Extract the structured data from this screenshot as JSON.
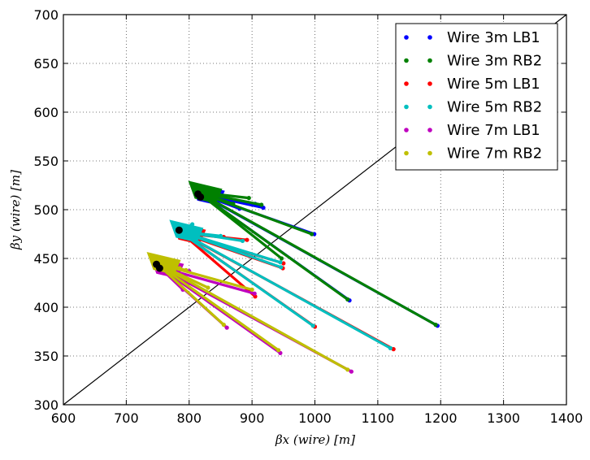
{
  "chart_data": {
    "type": "scatter",
    "xlabel": "βx (wire) [m]",
    "ylabel": "βy (wire) [m]",
    "xlim": [
      600,
      1400
    ],
    "ylim": [
      300,
      700
    ],
    "xticks": [
      600,
      700,
      800,
      900,
      1000,
      1100,
      1200,
      1300,
      1400
    ],
    "yticks": [
      300,
      350,
      400,
      450,
      500,
      550,
      600,
      650,
      700
    ],
    "grid": true,
    "legend_position": "top-right",
    "reference_line": {
      "from": [
        600,
        300
      ],
      "to": [
        1400,
        700
      ]
    },
    "series": [
      {
        "name": "Wire 3m LB1",
        "color": "#0000ff",
        "origin": [
          818,
          516
        ],
        "branches": [
          [
            845,
            506
          ],
          [
            880,
            501
          ],
          [
            905,
            506
          ],
          [
            918,
            502
          ],
          [
            999,
            475
          ],
          [
            1055,
            407
          ],
          [
            1195,
            381
          ]
        ]
      },
      {
        "name": "Wire 3m RB2",
        "color": "#008000",
        "origin": [
          814,
          518
        ],
        "branches": [
          [
            840,
            508
          ],
          [
            870,
            506
          ],
          [
            895,
            512
          ],
          [
            915,
            505
          ],
          [
            995,
            475
          ],
          [
            1052,
            408
          ],
          [
            1192,
            382
          ],
          [
            947,
            450
          ]
        ]
      },
      {
        "name": "Wire 5m LB1",
        "color": "#ff0000",
        "origin": [
          788,
          476
        ],
        "branches": [
          [
            820,
            478
          ],
          [
            855,
            472
          ],
          [
            892,
            469
          ],
          [
            905,
            411
          ],
          [
            950,
            445
          ],
          [
            949,
            440
          ],
          [
            1000,
            380
          ],
          [
            1125,
            357
          ]
        ]
      },
      {
        "name": "Wire 5m RB2",
        "color": "#00bfbf",
        "origin": [
          784,
          478
        ],
        "branches": [
          [
            815,
            479
          ],
          [
            850,
            473
          ],
          [
            885,
            468
          ],
          [
            945,
            446
          ],
          [
            946,
            441
          ],
          [
            997,
            381
          ],
          [
            1120,
            358
          ],
          [
            805,
            485
          ]
        ]
      },
      {
        "name": "Wire 7m LB1",
        "color": "#bf00bf",
        "origin": [
          753,
          441
        ],
        "branches": [
          [
            790,
            418
          ],
          [
            860,
            379
          ],
          [
            904,
            414
          ],
          [
            945,
            353
          ],
          [
            1058,
            334
          ],
          [
            800,
            437
          ]
        ]
      },
      {
        "name": "Wire 7m RB2",
        "color": "#bfbf00",
        "origin": [
          748,
          445
        ],
        "branches": [
          [
            785,
            440
          ],
          [
            855,
            382
          ],
          [
            900,
            418
          ],
          [
            942,
            356
          ],
          [
            1052,
            336
          ],
          [
            795,
            438
          ],
          [
            830,
            420
          ]
        ]
      }
    ],
    "start_markers": [
      [
        818,
        513
      ],
      [
        814,
        516
      ],
      [
        784,
        479
      ],
      [
        748,
        444
      ],
      [
        753,
        440
      ]
    ]
  }
}
